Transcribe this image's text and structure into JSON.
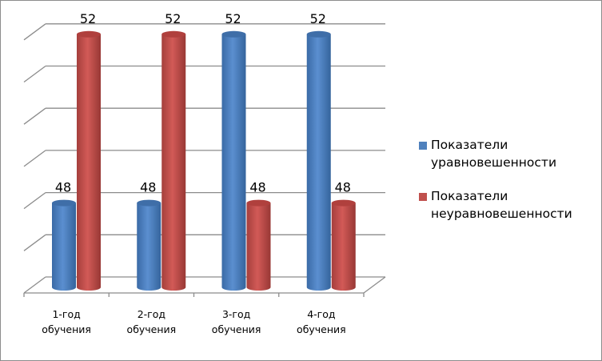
{
  "chart_data": {
    "type": "bar",
    "style": "3d-cylinder",
    "categories": [
      "1-год обучения",
      "2-год обучения",
      "3-год обучения",
      "4-год обучения"
    ],
    "category_lines": [
      [
        "1-год",
        "обучения"
      ],
      [
        "2-год",
        "обучения"
      ],
      [
        "3-год",
        "обучения"
      ],
      [
        "4-год",
        "обучения"
      ]
    ],
    "series": [
      {
        "name": "Показатели уравновешенности",
        "name_lines": [
          "Показатели",
          "уравновешенности"
        ],
        "color": "#4f81bd",
        "values": [
          48,
          48,
          52,
          52
        ]
      },
      {
        "name": "Показатели неуравновешенности",
        "name_lines": [
          "Показатели",
          "неуравновешенности"
        ],
        "color": "#c0504d",
        "values": [
          52,
          52,
          48,
          48
        ]
      }
    ],
    "title": "",
    "xlabel": "",
    "ylabel": "",
    "ylim": [
      46,
      52
    ],
    "grid": true,
    "legend": "right"
  }
}
